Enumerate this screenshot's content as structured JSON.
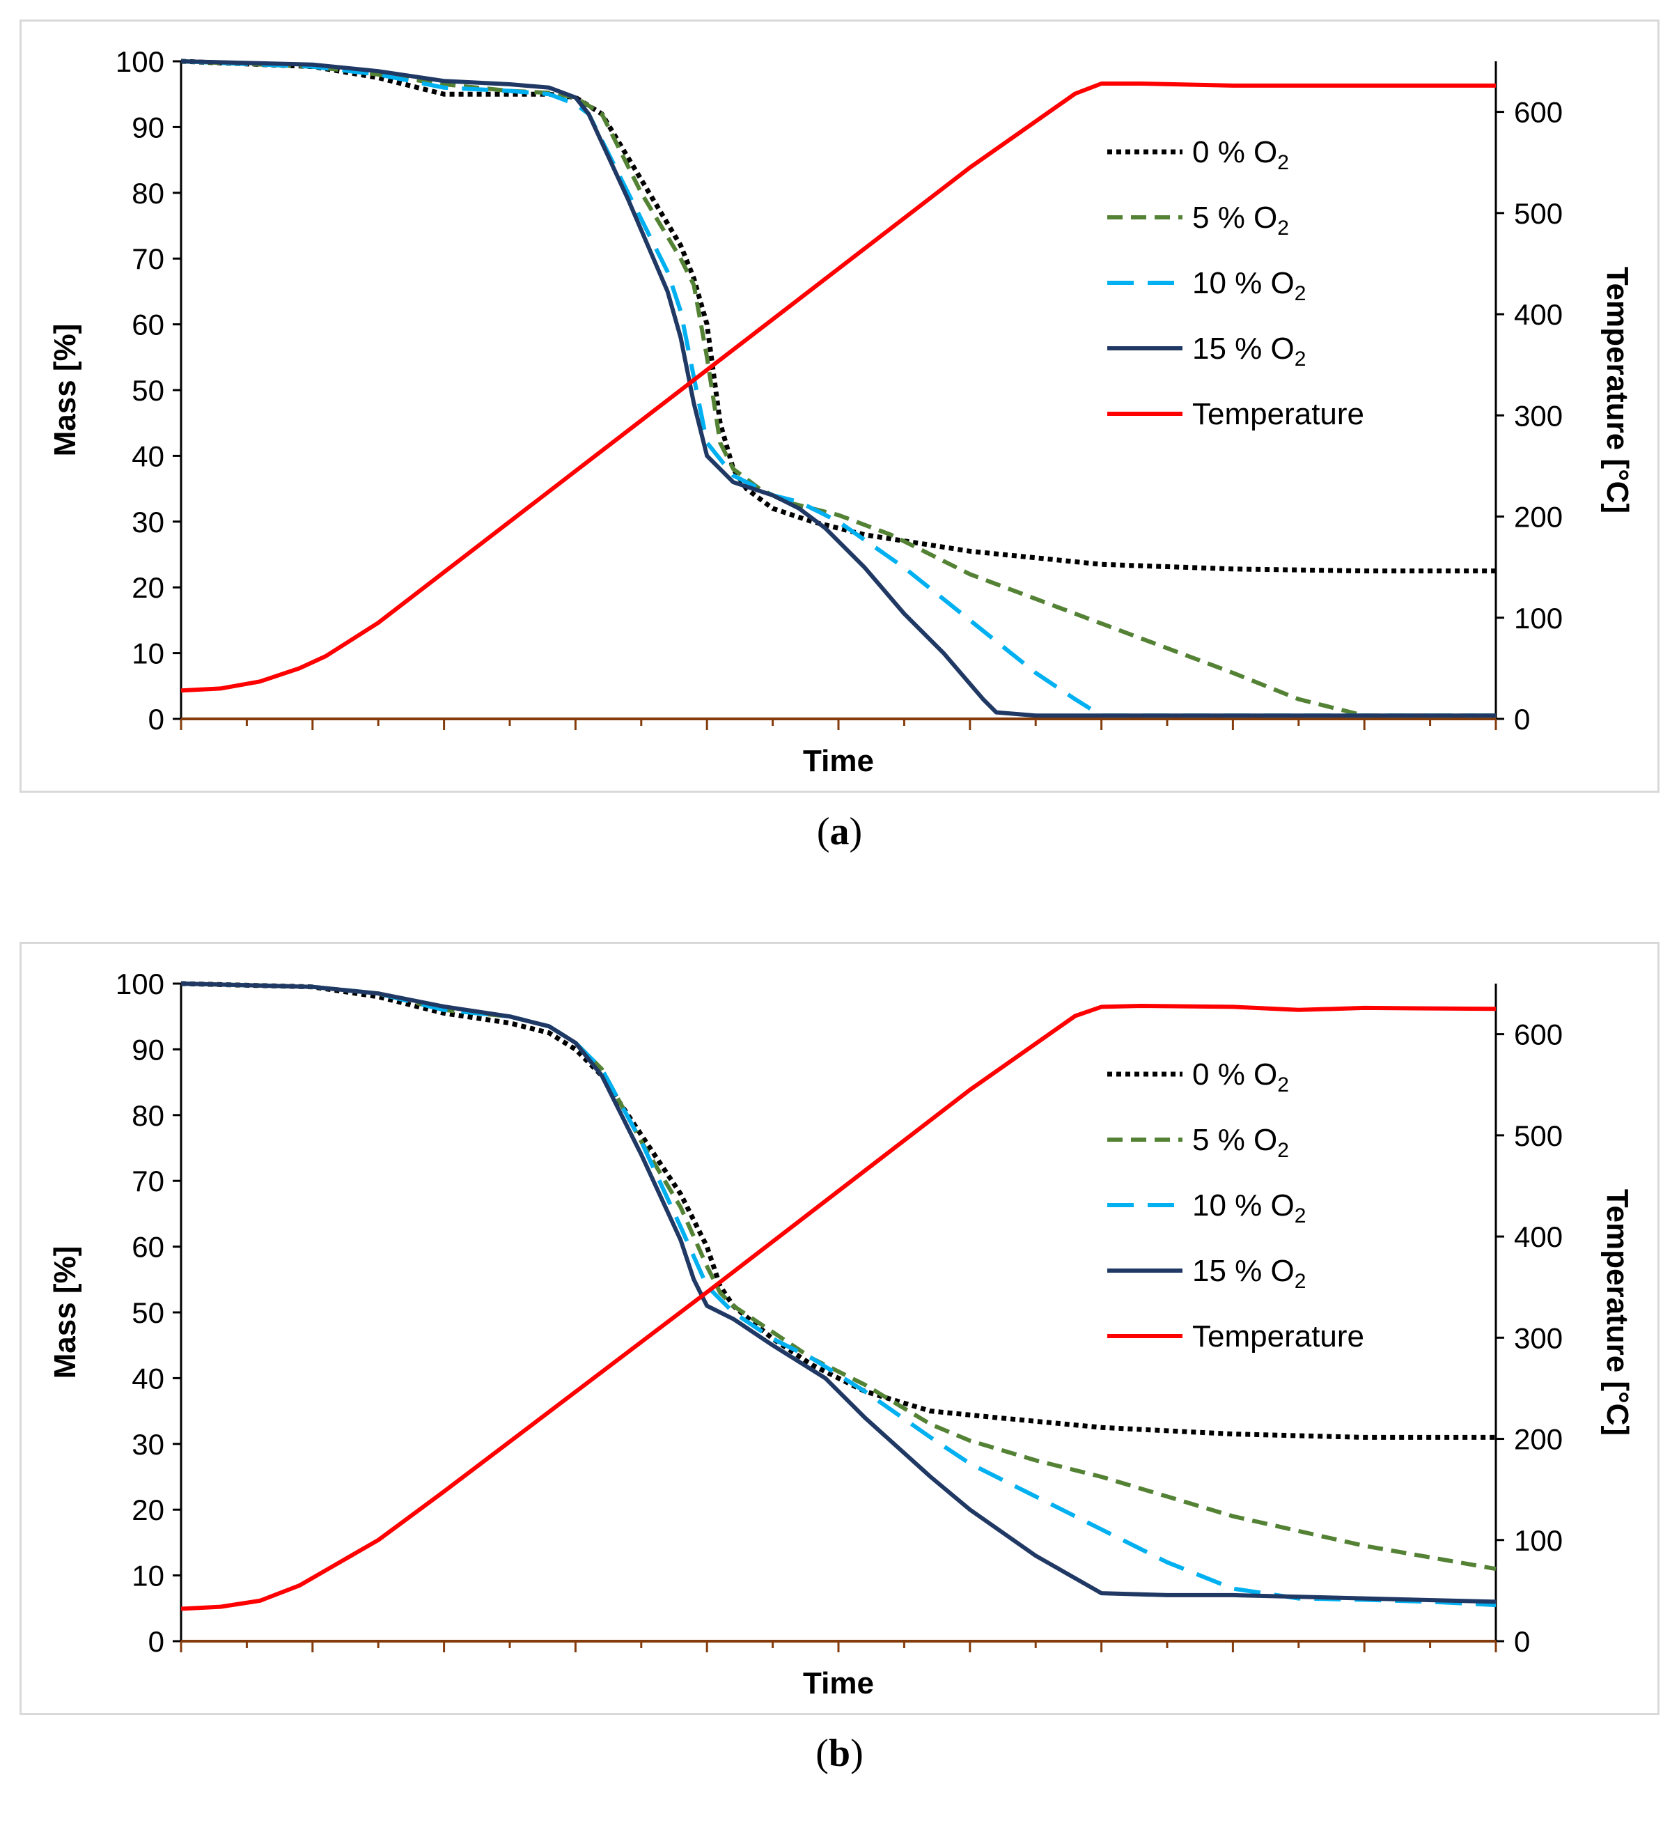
{
  "chart_data": [
    {
      "type": "line",
      "panel_label": "a",
      "xlabel": "Time",
      "ylabel": "Mass [%]",
      "y2label": "Temperature [°C]",
      "x_range": [
        0,
        100
      ],
      "ylim": [
        0,
        100
      ],
      "y_ticks": [
        0,
        10,
        20,
        30,
        40,
        50,
        60,
        70,
        80,
        90,
        100
      ],
      "y2lim": [
        0,
        650
      ],
      "y2_ticks": [
        0,
        100,
        200,
        300,
        400,
        500,
        600
      ],
      "legend_position": "upper-right",
      "series": [
        {
          "name": "0 % O",
          "subscript": "2",
          "axis": "left",
          "color": "#000000",
          "style": "dotted",
          "points": [
            [
              0,
              100
            ],
            [
              10,
              99.2
            ],
            [
              15,
              97.5
            ],
            [
              20,
              95
            ],
            [
              25,
              95
            ],
            [
              28,
              95
            ],
            [
              30,
              94.5
            ],
            [
              32,
              92
            ],
            [
              35,
              82
            ],
            [
              38,
              72
            ],
            [
              39,
              67
            ],
            [
              40,
              60
            ],
            [
              41,
              45
            ],
            [
              42,
              38
            ],
            [
              43,
              35
            ],
            [
              45,
              32
            ],
            [
              48,
              30
            ],
            [
              52,
              28
            ],
            [
              60,
              25.5
            ],
            [
              70,
              23.5
            ],
            [
              80,
              22.8
            ],
            [
              90,
              22.5
            ],
            [
              100,
              22.5
            ]
          ]
        },
        {
          "name": "5 % O",
          "subscript": "2",
          "axis": "left",
          "color": "#548235",
          "style": "short-dash",
          "points": [
            [
              0,
              100
            ],
            [
              10,
              99.2
            ],
            [
              15,
              98
            ],
            [
              20,
              96.5
            ],
            [
              25,
              95.5
            ],
            [
              28,
              95.2
            ],
            [
              30,
              94.5
            ],
            [
              32,
              92
            ],
            [
              35,
              80
            ],
            [
              38,
              70
            ],
            [
              39,
              66
            ],
            [
              40,
              55
            ],
            [
              41,
              42
            ],
            [
              42,
              38
            ],
            [
              44,
              35
            ],
            [
              46,
              33
            ],
            [
              50,
              31
            ],
            [
              54,
              28
            ],
            [
              60,
              22
            ],
            [
              70,
              14.5
            ],
            [
              80,
              7
            ],
            [
              85,
              3
            ],
            [
              90,
              0.5
            ],
            [
              100,
              0.5
            ]
          ]
        },
        {
          "name": "10 % O",
          "subscript": "2",
          "axis": "left",
          "color": "#00b0f0",
          "style": "long-dash",
          "points": [
            [
              0,
              100
            ],
            [
              10,
              99.2
            ],
            [
              15,
              98
            ],
            [
              20,
              96
            ],
            [
              25,
              95.5
            ],
            [
              28,
              95
            ],
            [
              30,
              93.5
            ],
            [
              31,
              92
            ],
            [
              34,
              80
            ],
            [
              37,
              68
            ],
            [
              38,
              62
            ],
            [
              39,
              52
            ],
            [
              40,
              42
            ],
            [
              42,
              37
            ],
            [
              45,
              34
            ],
            [
              47,
              33
            ],
            [
              50,
              30
            ],
            [
              55,
              23
            ],
            [
              60,
              15
            ],
            [
              65,
              7
            ],
            [
              68,
              3
            ],
            [
              70,
              0.5
            ],
            [
              100,
              0.5
            ]
          ]
        },
        {
          "name": "15 % O",
          "subscript": "2",
          "axis": "left",
          "color": "#203864",
          "style": "solid",
          "points": [
            [
              0,
              100
            ],
            [
              10,
              99.5
            ],
            [
              15,
              98.5
            ],
            [
              20,
              97
            ],
            [
              25,
              96.5
            ],
            [
              28,
              96
            ],
            [
              30,
              94.5
            ],
            [
              31,
              92
            ],
            [
              34,
              79
            ],
            [
              37,
              65
            ],
            [
              38,
              58
            ],
            [
              39,
              48
            ],
            [
              40,
              40
            ],
            [
              42,
              36
            ],
            [
              45,
              34
            ],
            [
              47,
              32
            ],
            [
              49,
              29
            ],
            [
              52,
              23
            ],
            [
              55,
              16
            ],
            [
              58,
              10
            ],
            [
              61,
              3
            ],
            [
              62,
              1
            ],
            [
              65,
              0.5
            ],
            [
              100,
              0.5
            ]
          ]
        },
        {
          "name": "Temperature",
          "subscript": "",
          "axis": "right",
          "color": "#ff0000",
          "style": "solid",
          "points": [
            [
              0,
              28
            ],
            [
              3,
              30
            ],
            [
              6,
              37
            ],
            [
              9,
              50
            ],
            [
              11,
              62
            ],
            [
              15,
              95
            ],
            [
              20,
              145
            ],
            [
              40,
              345
            ],
            [
              60,
              545
            ],
            [
              68,
              618
            ],
            [
              70,
              628
            ],
            [
              73,
              628
            ],
            [
              80,
              626
            ],
            [
              100,
              626
            ]
          ]
        }
      ]
    },
    {
      "type": "line",
      "panel_label": "b",
      "xlabel": "Time",
      "ylabel": "Mass [%]",
      "y2label": "Temperature [°C]",
      "x_range": [
        0,
        100
      ],
      "ylim": [
        0,
        100
      ],
      "y_ticks": [
        0,
        10,
        20,
        30,
        40,
        50,
        60,
        70,
        80,
        90,
        100
      ],
      "y2lim": [
        0,
        650
      ],
      "y2_ticks": [
        0,
        100,
        200,
        300,
        400,
        500,
        600
      ],
      "legend_position": "upper-right",
      "series": [
        {
          "name": "0 % O",
          "subscript": "2",
          "axis": "left",
          "color": "#000000",
          "style": "dotted",
          "points": [
            [
              0,
              100
            ],
            [
              10,
              99.5
            ],
            [
              15,
              98
            ],
            [
              20,
              95.5
            ],
            [
              25,
              94
            ],
            [
              28,
              92.5
            ],
            [
              30,
              90
            ],
            [
              32,
              86
            ],
            [
              35,
              77
            ],
            [
              38,
              68
            ],
            [
              40,
              60
            ],
            [
              41,
              54
            ],
            [
              42,
              51
            ],
            [
              45,
              46
            ],
            [
              48,
              42
            ],
            [
              52,
              38
            ],
            [
              57,
              35
            ],
            [
              62,
              34
            ],
            [
              70,
              32.5
            ],
            [
              80,
              31.5
            ],
            [
              90,
              31
            ],
            [
              100,
              31
            ]
          ]
        },
        {
          "name": "5 % O",
          "subscript": "2",
          "axis": "left",
          "color": "#548235",
          "style": "short-dash",
          "points": [
            [
              0,
              100
            ],
            [
              10,
              99.5
            ],
            [
              15,
              98.5
            ],
            [
              20,
              96
            ],
            [
              25,
              95
            ],
            [
              28,
              93.5
            ],
            [
              30,
              91
            ],
            [
              32,
              87
            ],
            [
              35,
              76
            ],
            [
              38,
              66
            ],
            [
              40,
              57
            ],
            [
              41,
              53
            ],
            [
              42,
              51
            ],
            [
              45,
              47
            ],
            [
              48,
              43
            ],
            [
              52,
              39
            ],
            [
              57,
              33
            ],
            [
              60,
              30.5
            ],
            [
              65,
              27.5
            ],
            [
              70,
              25
            ],
            [
              80,
              19
            ],
            [
              90,
              14.5
            ],
            [
              100,
              11
            ]
          ]
        },
        {
          "name": "10 % O",
          "subscript": "2",
          "axis": "left",
          "color": "#00b0f0",
          "style": "long-dash",
          "points": [
            [
              0,
              100
            ],
            [
              10,
              99.5
            ],
            [
              15,
              98.5
            ],
            [
              20,
              96
            ],
            [
              25,
              95
            ],
            [
              28,
              93.5
            ],
            [
              30,
              91
            ],
            [
              32,
              87
            ],
            [
              35,
              76
            ],
            [
              38,
              63
            ],
            [
              40,
              54
            ],
            [
              42,
              50
            ],
            [
              45,
              46
            ],
            [
              48,
              43
            ],
            [
              52,
              38
            ],
            [
              57,
              31
            ],
            [
              60,
              27
            ],
            [
              65,
              22
            ],
            [
              70,
              17
            ],
            [
              75,
              12
            ],
            [
              80,
              8
            ],
            [
              85,
              6.5
            ],
            [
              90,
              6.3
            ],
            [
              95,
              6
            ],
            [
              100,
              5.5
            ]
          ]
        },
        {
          "name": "15 % O",
          "subscript": "2",
          "axis": "left",
          "color": "#203864",
          "style": "solid",
          "points": [
            [
              0,
              100
            ],
            [
              10,
              99.5
            ],
            [
              15,
              98.5
            ],
            [
              20,
              96.5
            ],
            [
              25,
              95
            ],
            [
              28,
              93.5
            ],
            [
              30,
              91
            ],
            [
              32,
              86
            ],
            [
              35,
              74
            ],
            [
              38,
              61
            ],
            [
              39,
              55
            ],
            [
              40,
              51
            ],
            [
              42,
              49
            ],
            [
              45,
              45
            ],
            [
              49,
              40
            ],
            [
              52,
              34
            ],
            [
              57,
              25
            ],
            [
              60,
              20
            ],
            [
              65,
              13
            ],
            [
              70,
              7.3
            ],
            [
              75,
              7
            ],
            [
              80,
              7
            ],
            [
              90,
              6.5
            ],
            [
              100,
              6
            ]
          ]
        },
        {
          "name": "Temperature",
          "subscript": "",
          "axis": "right",
          "color": "#ff0000",
          "style": "solid",
          "points": [
            [
              0,
              32
            ],
            [
              3,
              34
            ],
            [
              6,
              40
            ],
            [
              9,
              55
            ],
            [
              11,
              70
            ],
            [
              15,
              100
            ],
            [
              20,
              148
            ],
            [
              40,
              345
            ],
            [
              60,
              545
            ],
            [
              68,
              618
            ],
            [
              70,
              627
            ],
            [
              73,
              628
            ],
            [
              80,
              627
            ],
            [
              85,
              624
            ],
            [
              90,
              626
            ],
            [
              100,
              625
            ]
          ]
        }
      ]
    }
  ]
}
